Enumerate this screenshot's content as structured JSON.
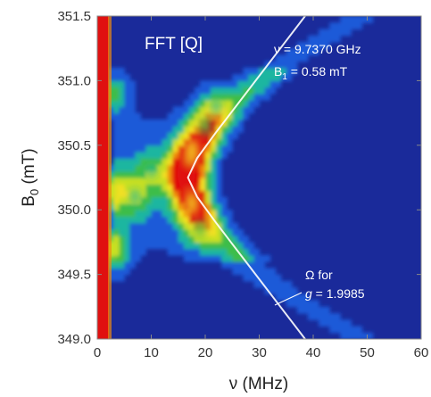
{
  "chart_data": {
    "type": "heatmap",
    "title": "FFT [Q]",
    "xlabel": "ν (MHz)",
    "ylabel_main": "B",
    "ylabel_sub": "0",
    "ylabel_unit": " (mT)",
    "xlim": [
      0,
      60
    ],
    "ylim": [
      349.0,
      351.5
    ],
    "xticks": [
      "0",
      "10",
      "20",
      "30",
      "40",
      "50",
      "60"
    ],
    "yticks": [
      "349.0",
      "349.5",
      "350.0",
      "350.5",
      "351.0",
      "351.5"
    ],
    "grid": false,
    "colormap": [
      "#1a2a9a",
      "#1e5ad8",
      "#1fb6a0",
      "#3dbd4a",
      "#c8e020",
      "#f5e020",
      "#f08a10",
      "#e01010"
    ],
    "annotations": {
      "freq": "ν = 9.7370 GHz",
      "b1_main": "B",
      "b1_sub": "1",
      "b1_rest": " = 0.58 mT",
      "omega_line1": "Ω for",
      "omega_g": "g",
      "omega_rest": " = 1.9985"
    },
    "hotspots": [
      {
        "x": 16.5,
        "y": 350.28,
        "intensity": 1.0
      },
      {
        "x": 17.5,
        "y": 350.45,
        "intensity": 0.75
      },
      {
        "x": 17.5,
        "y": 350.05,
        "intensity": 0.65
      },
      {
        "x": 20.0,
        "y": 350.65,
        "intensity": 0.5
      },
      {
        "x": 19.0,
        "y": 349.85,
        "intensity": 0.45
      },
      {
        "x": 22.0,
        "y": 350.8,
        "intensity": 0.35
      },
      {
        "x": 2.5,
        "y": 349.7,
        "intensity": 0.6
      },
      {
        "x": 2.5,
        "y": 350.15,
        "intensity": 0.55
      },
      {
        "x": 2.5,
        "y": 350.9,
        "intensity": 0.4
      },
      {
        "x": 7.0,
        "y": 350.1,
        "intensity": 0.35
      },
      {
        "x": 10.0,
        "y": 350.3,
        "intensity": 0.3
      }
    ],
    "omega_curve": {
      "name": "Ω for g = 1.9985",
      "vertex_x": 16.8,
      "vertex_y": 350.25,
      "points": [
        [
          38.5,
          351.5
        ],
        [
          33.0,
          351.2
        ],
        [
          27.5,
          350.9
        ],
        [
          22.0,
          350.6
        ],
        [
          18.5,
          350.4
        ],
        [
          16.8,
          350.25
        ],
        [
          18.5,
          350.1
        ],
        [
          22.0,
          349.9
        ],
        [
          27.5,
          349.6
        ],
        [
          33.0,
          349.3
        ],
        [
          38.5,
          349.0
        ]
      ]
    }
  }
}
